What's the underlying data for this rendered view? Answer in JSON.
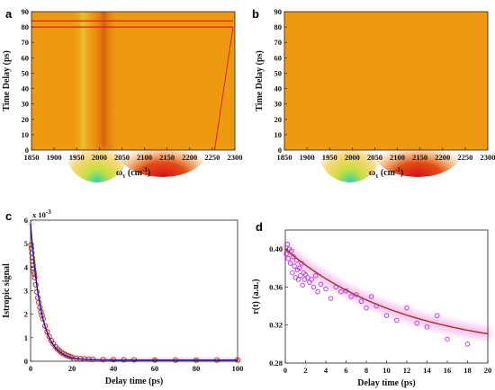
{
  "chart_data": [
    {
      "panel": "a",
      "type": "heatmap",
      "xlabel": "ω",
      "xlabel_sub": "τ",
      "xlabel_unit": " (cm",
      "xlabel_sup": "-1",
      "xlabel_close": ")",
      "ylabel": "Time Delay (ps)",
      "xlim": [
        1850,
        2300
      ],
      "ylim": [
        0,
        90
      ],
      "xticks": [
        "1850",
        "1900",
        "1950",
        "2000",
        "2050",
        "2100",
        "2150",
        "2200",
        "2250",
        "2300"
      ],
      "yticks": [
        "0",
        "10",
        "20",
        "30",
        "40",
        "50",
        "60",
        "70",
        "80",
        "90"
      ],
      "background_color": "#ee9a10",
      "features": [
        {
          "kind": "peak",
          "x": 1995,
          "y": 2,
          "color": "#2fd0b0"
        },
        {
          "kind": "peak",
          "x": 2140,
          "y": 2,
          "color": "#d8101a"
        },
        {
          "kind": "band",
          "x": 2010,
          "color": "#d55a10"
        },
        {
          "kind": "band",
          "x": 1965,
          "color": "#e8d040"
        },
        {
          "kind": "hline",
          "y": 84,
          "color": "#e02020"
        },
        {
          "kind": "hline",
          "y": 80,
          "color": "#e02020"
        }
      ]
    },
    {
      "panel": "b",
      "type": "heatmap",
      "xlabel": "ω",
      "xlabel_sub": "τ",
      "xlabel_unit": " (cm",
      "xlabel_sup": "-1",
      "xlabel_close": ")",
      "ylabel": "Time Delay (ps)",
      "xlim": [
        1850,
        2300
      ],
      "ylim": [
        0,
        90
      ],
      "xticks": [
        "1850",
        "1900",
        "1950",
        "2000",
        "2050",
        "2100",
        "2150",
        "2200",
        "2250",
        "2300"
      ],
      "yticks": [
        "0",
        "10",
        "20",
        "30",
        "40",
        "50",
        "60",
        "70",
        "80",
        "90"
      ],
      "background_color": "#ee9a10",
      "features": [
        {
          "kind": "peak",
          "x": 1995,
          "y": 2,
          "color": "#2fd0b0"
        },
        {
          "kind": "peak",
          "x": 2145,
          "y": 2,
          "color": "#d8101a"
        }
      ]
    },
    {
      "panel": "c",
      "type": "scatter",
      "xlabel": "Delay time (ps)",
      "ylabel": "Istropic signal",
      "scale_label": "x 10",
      "scale_exp": "-3",
      "xlim": [
        0,
        100
      ],
      "ylim": [
        0,
        6
      ],
      "xticks": [
        "0",
        "20",
        "40",
        "60",
        "80",
        "100"
      ],
      "yticks": [
        "0",
        "1",
        "2",
        "3",
        "4",
        "5",
        "6"
      ],
      "series": [
        {
          "marker": "circle",
          "color": "#c0392b",
          "x": [
            0.2,
            0.4,
            0.6,
            0.8,
            1.0,
            1.2,
            1.4,
            1.6,
            1.8,
            2.0,
            2.5,
            3,
            3.5,
            4,
            4.5,
            5,
            5.5,
            6,
            7,
            8,
            9,
            10,
            11,
            12,
            13,
            14,
            15,
            16,
            17,
            18,
            19,
            20,
            22,
            24,
            26,
            28,
            30,
            35,
            40,
            45,
            50,
            60,
            70,
            80,
            90,
            100
          ],
          "y": [
            4.95,
            4.8,
            4.6,
            4.4,
            4.25,
            4.1,
            3.95,
            3.8,
            3.7,
            3.55,
            3.25,
            2.95,
            2.7,
            2.5,
            2.3,
            2.1,
            1.95,
            1.8,
            1.5,
            1.25,
            1.05,
            0.88,
            0.74,
            0.62,
            0.52,
            0.44,
            0.37,
            0.32,
            0.27,
            0.23,
            0.2,
            0.17,
            0.13,
            0.11,
            0.1,
            0.09,
            0.08,
            0.07,
            0.07,
            0.06,
            0.06,
            0.05,
            0.05,
            0.05,
            0.05,
            0.05
          ]
        },
        {
          "type": "line",
          "color": "#1a1aa0",
          "model": "exponential",
          "amplitude": 5.8,
          "tau": 5.0,
          "offset": 0.05
        }
      ]
    },
    {
      "panel": "d",
      "type": "scatter",
      "xlabel": "Delay time (ps)",
      "ylabel": "r(t) (a.u.)",
      "xlim": [
        0,
        20
      ],
      "ylim": [
        0.28,
        0.42
      ],
      "xticks": [
        "0",
        "2",
        "4",
        "6",
        "8",
        "10",
        "12",
        "14",
        "16",
        "18",
        "20"
      ],
      "yticks": [
        "0.28",
        "0.32",
        "0.36",
        "0.40"
      ],
      "series": [
        {
          "marker": "circle",
          "color": "#c040e0",
          "x": [
            0.1,
            0.2,
            0.3,
            0.4,
            0.5,
            0.6,
            0.7,
            0.8,
            0.9,
            1.0,
            1.1,
            1.2,
            1.3,
            1.4,
            1.5,
            1.6,
            1.7,
            1.8,
            1.9,
            2.0,
            2.2,
            2.4,
            2.6,
            2.8,
            3.0,
            3.2,
            3.5,
            4.0,
            4.5,
            5.0,
            5.5,
            6.0,
            6.5,
            7.0,
            7.5,
            8.0,
            8.5,
            9.0,
            10.0,
            11.0,
            12.0,
            13.0,
            14.0,
            15.0,
            16.0,
            18.0
          ],
          "y": [
            0.395,
            0.405,
            0.39,
            0.4,
            0.385,
            0.398,
            0.375,
            0.392,
            0.382,
            0.37,
            0.388,
            0.378,
            0.368,
            0.38,
            0.372,
            0.385,
            0.362,
            0.375,
            0.368,
            0.373,
            0.37,
            0.365,
            0.368,
            0.36,
            0.372,
            0.355,
            0.363,
            0.358,
            0.348,
            0.36,
            0.355,
            0.356,
            0.35,
            0.352,
            0.345,
            0.338,
            0.35,
            0.34,
            0.33,
            0.325,
            0.338,
            0.322,
            0.318,
            0.33,
            0.305,
            0.3
          ]
        },
        {
          "type": "line",
          "color": "#a0332a",
          "model": "exponential",
          "amplitude": 0.11,
          "tau": 12.0,
          "offset": 0.29
        }
      ]
    }
  ]
}
